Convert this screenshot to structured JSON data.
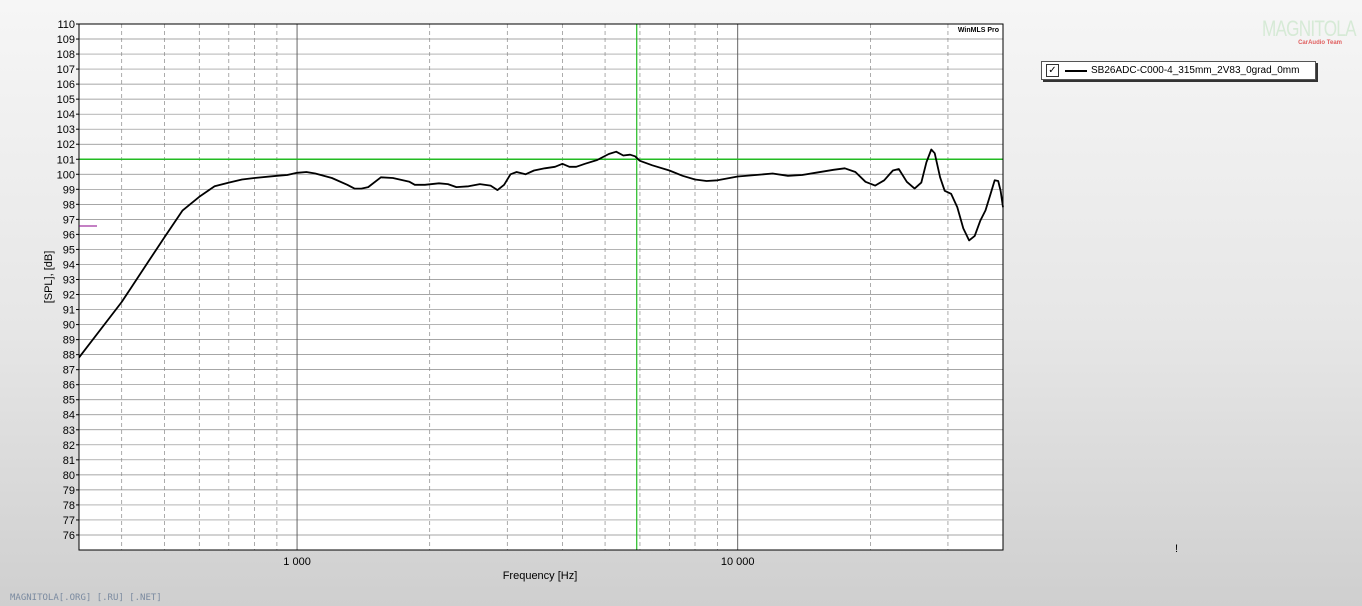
{
  "watermark": "WinMLS Pro",
  "logo": {
    "text": "MAGNITOLA",
    "subtitle": "CarAudio Team"
  },
  "footer": "MAGNITOLA[.ORG] [.RU] [.NET]",
  "legend": {
    "checked": true,
    "check_glyph": "✓",
    "entry": "SB26ADC-C000-4_315mm_2V83_0grad_0mm"
  },
  "cursor_marker": "!",
  "colors": {
    "curve": "#000000",
    "cursor": "#22bb22",
    "grid": "#888888",
    "plot_bg": "#ffffff",
    "stub": "#880088"
  },
  "chart_data": {
    "type": "line",
    "xlabel": "Frequency [Hz]",
    "ylabel": "[SPL], [dB]",
    "x_scale": "log",
    "xlim": [
      320,
      40000
    ],
    "ylim": [
      75,
      110
    ],
    "x_tick_labels": [
      {
        "value": 1000,
        "label": "1 000"
      },
      {
        "value": 10000,
        "label": "10 000"
      }
    ],
    "x_gridlines": [
      400,
      500,
      600,
      700,
      800,
      900,
      1000,
      2000,
      3000,
      4000,
      5000,
      6000,
      7000,
      8000,
      9000,
      10000,
      20000,
      30000
    ],
    "y_ticks": [
      76,
      77,
      78,
      79,
      80,
      81,
      82,
      83,
      84,
      85,
      86,
      87,
      88,
      89,
      90,
      91,
      92,
      93,
      94,
      95,
      96,
      97,
      98,
      99,
      100,
      101,
      102,
      103,
      104,
      105,
      106,
      107,
      108,
      109,
      110
    ],
    "grid": true,
    "cursor": {
      "x": 5900,
      "y": 101
    },
    "series": [
      {
        "name": "SB26ADC-C000-4_315mm_2V83_0grad_0mm",
        "points": [
          [
            320,
            87.8
          ],
          [
            400,
            91.5
          ],
          [
            460,
            94.2
          ],
          [
            500,
            95.8
          ],
          [
            550,
            97.6
          ],
          [
            600,
            98.5
          ],
          [
            650,
            99.2
          ],
          [
            700,
            99.45
          ],
          [
            750,
            99.65
          ],
          [
            800,
            99.75
          ],
          [
            900,
            99.9
          ],
          [
            950,
            99.95
          ],
          [
            1000,
            100.1
          ],
          [
            1050,
            100.15
          ],
          [
            1100,
            100.05
          ],
          [
            1200,
            99.75
          ],
          [
            1300,
            99.3
          ],
          [
            1350,
            99.05
          ],
          [
            1400,
            99.05
          ],
          [
            1450,
            99.15
          ],
          [
            1550,
            99.8
          ],
          [
            1650,
            99.75
          ],
          [
            1800,
            99.5
          ],
          [
            1850,
            99.3
          ],
          [
            1950,
            99.3
          ],
          [
            2100,
            99.4
          ],
          [
            2200,
            99.35
          ],
          [
            2300,
            99.15
          ],
          [
            2450,
            99.2
          ],
          [
            2600,
            99.35
          ],
          [
            2750,
            99.25
          ],
          [
            2850,
            98.95
          ],
          [
            2950,
            99.3
          ],
          [
            3050,
            100.0
          ],
          [
            3150,
            100.15
          ],
          [
            3300,
            100.0
          ],
          [
            3450,
            100.25
          ],
          [
            3650,
            100.4
          ],
          [
            3850,
            100.5
          ],
          [
            4000,
            100.7
          ],
          [
            4150,
            100.5
          ],
          [
            4300,
            100.5
          ],
          [
            4500,
            100.7
          ],
          [
            4800,
            100.95
          ],
          [
            5100,
            101.35
          ],
          [
            5300,
            101.5
          ],
          [
            5500,
            101.25
          ],
          [
            5700,
            101.3
          ],
          [
            5850,
            101.2
          ],
          [
            6000,
            100.9
          ],
          [
            6400,
            100.6
          ],
          [
            7000,
            100.25
          ],
          [
            7500,
            99.9
          ],
          [
            8000,
            99.65
          ],
          [
            8500,
            99.55
          ],
          [
            9000,
            99.6
          ],
          [
            10000,
            99.85
          ],
          [
            11000,
            99.95
          ],
          [
            12000,
            100.05
          ],
          [
            13000,
            99.9
          ],
          [
            14000,
            99.95
          ],
          [
            15000,
            100.1
          ],
          [
            16500,
            100.3
          ],
          [
            17500,
            100.4
          ],
          [
            18500,
            100.15
          ],
          [
            19500,
            99.5
          ],
          [
            20500,
            99.25
          ],
          [
            21500,
            99.6
          ],
          [
            22500,
            100.25
          ],
          [
            23200,
            100.35
          ],
          [
            24200,
            99.5
          ],
          [
            25200,
            99.05
          ],
          [
            26100,
            99.45
          ],
          [
            26800,
            100.8
          ],
          [
            27500,
            101.65
          ],
          [
            28000,
            101.4
          ],
          [
            28800,
            99.8
          ],
          [
            29500,
            98.9
          ],
          [
            30500,
            98.7
          ],
          [
            31500,
            97.8
          ],
          [
            32500,
            96.4
          ],
          [
            33500,
            95.6
          ],
          [
            34500,
            95.9
          ],
          [
            35500,
            96.9
          ],
          [
            36500,
            97.6
          ],
          [
            37500,
            98.7
          ],
          [
            38300,
            99.6
          ],
          [
            39000,
            99.55
          ],
          [
            39500,
            98.9
          ],
          [
            40000,
            97.8
          ]
        ]
      }
    ]
  }
}
